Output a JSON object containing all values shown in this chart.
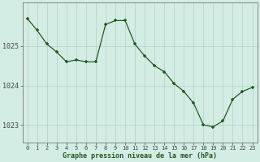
{
  "x": [
    0,
    1,
    2,
    3,
    4,
    5,
    6,
    7,
    8,
    9,
    10,
    11,
    12,
    13,
    14,
    15,
    16,
    17,
    18,
    19,
    20,
    21,
    22,
    23
  ],
  "y": [
    1025.7,
    1025.4,
    1025.05,
    1024.85,
    1024.6,
    1024.65,
    1024.6,
    1024.6,
    1025.55,
    1025.65,
    1025.65,
    1025.05,
    1024.75,
    1024.5,
    1024.35,
    1024.05,
    1023.85,
    1023.55,
    1023.0,
    1022.95,
    1023.1,
    1023.65,
    1023.85,
    1023.95
  ],
  "line_color": "#1e5c1e",
  "marker_color": "#1e5c1e",
  "bg_color": "#d4ede4",
  "grid_color": "#b8cec8",
  "axis_label_color": "#1e5c1e",
  "tick_color": "#444444",
  "xlabel": "Graphe pression niveau de la mer (hPa)",
  "ylim": [
    1022.55,
    1026.1
  ],
  "yticks": [
    1023,
    1024,
    1025
  ],
  "xticks": [
    0,
    1,
    2,
    3,
    4,
    5,
    6,
    7,
    8,
    9,
    10,
    11,
    12,
    13,
    14,
    15,
    16,
    17,
    18,
    19,
    20,
    21,
    22,
    23
  ],
  "figsize": [
    3.2,
    2.0
  ],
  "dpi": 100
}
